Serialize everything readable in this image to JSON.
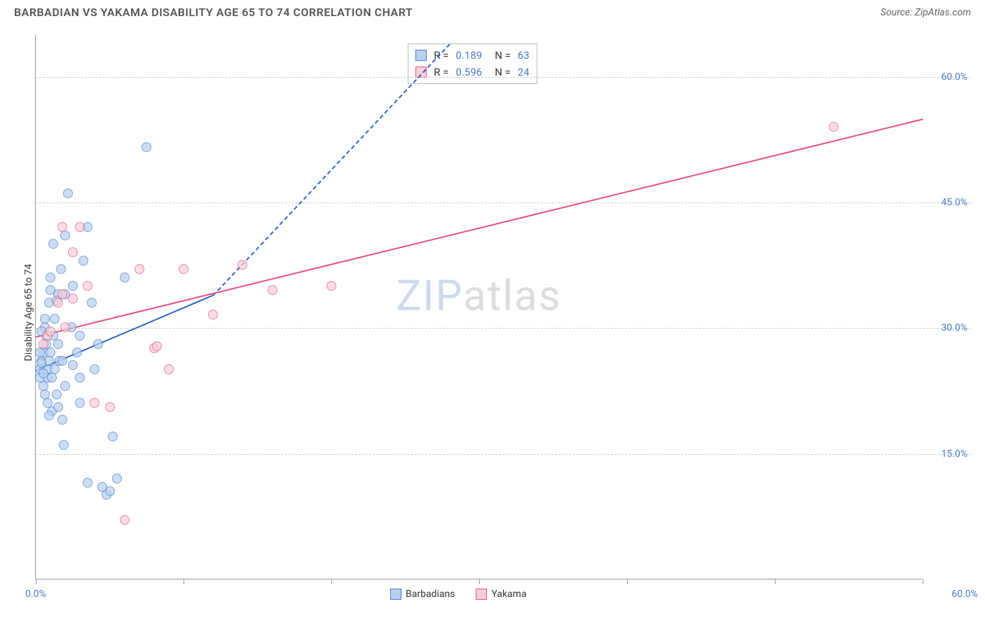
{
  "title": "BARBADIAN VS YAKAMA DISABILITY AGE 65 TO 74 CORRELATION CHART",
  "source_label": "Source: ZipAtlas.com",
  "watermark": {
    "part1": "ZIP",
    "part2": "atlas"
  },
  "chart": {
    "type": "scatter",
    "y_axis_label": "Disability Age 65 to 74",
    "xlim": [
      0,
      60
    ],
    "ylim": [
      0,
      65
    ],
    "x_ticks": [
      0,
      10,
      20,
      30,
      40,
      50,
      60
    ],
    "x_tick_labels": {
      "0": "0.0%",
      "60": "60.0%"
    },
    "y_gridlines": [
      15,
      30,
      45,
      60
    ],
    "y_tick_labels": {
      "15": "15.0%",
      "30": "30.0%",
      "45": "45.0%",
      "60": "60.0%"
    },
    "grid_color": "#cccccc",
    "axis_color": "#999999",
    "value_color": "#4a7bc8",
    "background_color": "#ffffff",
    "series": [
      {
        "name": "Barbadians",
        "fill": "#b9d0f0",
        "stroke": "#4a7bc8",
        "r_value": "0.189",
        "n_value": "63",
        "trend": {
          "x1": 0,
          "y1": 25,
          "x2": 12,
          "y2": 34,
          "dash_x2": 28,
          "dash_y2": 64,
          "solid_color": "#2f63c4",
          "dash": true
        },
        "points": [
          [
            0.3,
            24
          ],
          [
            0.3,
            25
          ],
          [
            0.4,
            26
          ],
          [
            0.5,
            27
          ],
          [
            0.5,
            23
          ],
          [
            0.6,
            30
          ],
          [
            0.6,
            22
          ],
          [
            0.7,
            28
          ],
          [
            0.7,
            29
          ],
          [
            0.8,
            24
          ],
          [
            0.8,
            25
          ],
          [
            0.9,
            33
          ],
          [
            0.9,
            26
          ],
          [
            1.0,
            27
          ],
          [
            1.0,
            36
          ],
          [
            1.1,
            20
          ],
          [
            1.1,
            24
          ],
          [
            1.2,
            29
          ],
          [
            1.2,
            40
          ],
          [
            1.3,
            25
          ],
          [
            1.3,
            31
          ],
          [
            1.4,
            22
          ],
          [
            1.5,
            28
          ],
          [
            1.5,
            34
          ],
          [
            1.6,
            26
          ],
          [
            1.7,
            37
          ],
          [
            1.8,
            19
          ],
          [
            1.9,
            16
          ],
          [
            2.0,
            41
          ],
          [
            2.0,
            23
          ],
          [
            2.2,
            46
          ],
          [
            2.4,
            30
          ],
          [
            2.5,
            35
          ],
          [
            2.8,
            27
          ],
          [
            3.0,
            21
          ],
          [
            3.0,
            24
          ],
          [
            3.2,
            38
          ],
          [
            3.5,
            42
          ],
          [
            3.8,
            33
          ],
          [
            4.0,
            25
          ],
          [
            4.2,
            28
          ],
          [
            4.5,
            11
          ],
          [
            4.8,
            10
          ],
          [
            5.0,
            10.5
          ],
          [
            5.2,
            17
          ],
          [
            5.5,
            12
          ],
          [
            6.0,
            36
          ],
          [
            1.0,
            34.5
          ],
          [
            1.4,
            33.2
          ],
          [
            0.4,
            29.5
          ],
          [
            0.6,
            31
          ],
          [
            2.0,
            34
          ],
          [
            2.5,
            25.5
          ],
          [
            3.0,
            29
          ],
          [
            0.5,
            24.5
          ],
          [
            0.4,
            25.8
          ],
          [
            0.3,
            27
          ],
          [
            1.8,
            26
          ],
          [
            0.8,
            21
          ],
          [
            0.9,
            19.5
          ],
          [
            1.5,
            20.5
          ],
          [
            7.5,
            51.5
          ],
          [
            3.5,
            11.5
          ]
        ]
      },
      {
        "name": "Yakama",
        "fill": "#f6cfd9",
        "stroke": "#e6527d",
        "r_value": "0.596",
        "n_value": "24",
        "trend": {
          "x1": 0,
          "y1": 29,
          "x2": 60,
          "y2": 55,
          "solid_color": "#e6527d",
          "dash": false
        },
        "points": [
          [
            0.5,
            28
          ],
          [
            0.8,
            29
          ],
          [
            1.0,
            29.5
          ],
          [
            1.5,
            33
          ],
          [
            1.8,
            34
          ],
          [
            2.0,
            30
          ],
          [
            2.5,
            33.5
          ],
          [
            3.0,
            42
          ],
          [
            3.5,
            35
          ],
          [
            4.0,
            21
          ],
          [
            5.0,
            20.5
          ],
          [
            6.0,
            7
          ],
          [
            7.0,
            37
          ],
          [
            8.0,
            27.5
          ],
          [
            8.2,
            27.8
          ],
          [
            9.0,
            25
          ],
          [
            10.0,
            37
          ],
          [
            12.0,
            31.5
          ],
          [
            14.0,
            37.5
          ],
          [
            16.0,
            34.5
          ],
          [
            20.0,
            35
          ],
          [
            54.0,
            54
          ],
          [
            1.8,
            42
          ],
          [
            2.5,
            39
          ]
        ]
      }
    ],
    "legend_bottom": [
      {
        "label": "Barbadians",
        "fill": "#b9d0f0",
        "stroke": "#4a7bc8"
      },
      {
        "label": "Yakama",
        "fill": "#f6cfd9",
        "stroke": "#e6527d"
      }
    ]
  }
}
